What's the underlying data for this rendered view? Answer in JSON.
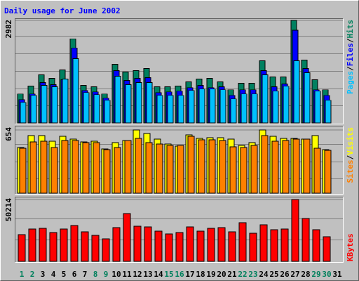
{
  "chart_data": {
    "type": "bar",
    "title": "Daily usage for June 2002",
    "categories": [
      "1",
      "2",
      "3",
      "4",
      "5",
      "6",
      "7",
      "8",
      "9",
      "10",
      "11",
      "12",
      "13",
      "14",
      "15",
      "16",
      "17",
      "18",
      "19",
      "20",
      "21",
      "22",
      "23",
      "24",
      "25",
      "26",
      "27",
      "28",
      "29",
      "30",
      "31"
    ],
    "category_colors": [
      "#00805C",
      "#00805C",
      "#000000",
      "#000000",
      "#000000",
      "#000000",
      "#000000",
      "#00805C",
      "#00805C",
      "#000000",
      "#000000",
      "#000000",
      "#000000",
      "#000000",
      "#00805C",
      "#00805C",
      "#000000",
      "#000000",
      "#000000",
      "#000000",
      "#000000",
      "#00805C",
      "#00805C",
      "#000000",
      "#000000",
      "#000000",
      "#000000",
      "#000000",
      "#00805C",
      "#00805C",
      "#000000"
    ],
    "label_separator": "/",
    "panels": [
      {
        "ylim": [
          0,
          2982
        ],
        "yticks": [
          2982
        ],
        "series": [
          {
            "name": "Hits",
            "color": "#008060",
            "label_color": "#00805C",
            "values": [
              843,
              1070,
              1399,
              1296,
              1543,
              2447,
              1090,
              1049,
              843,
              1707,
              1481,
              1522,
              1584,
              1049,
              1049,
              1070,
              1193,
              1275,
              1296,
              1193,
              967,
              1152,
              1152,
              1810,
              1337,
              1337,
              2982,
              1831,
              1255,
              967,
              null
            ]
          },
          {
            "name": "Files",
            "color": "#0000FF",
            "label_color": "#0000FF",
            "values": [
              679,
              843,
              1172,
              1111,
              1255,
              2180,
              946,
              905,
              720,
              1522,
              1234,
              1296,
              1316,
              884,
              905,
              925,
              1028,
              1090,
              1028,
              1049,
              802,
              967,
              967,
              1522,
              1049,
              1131,
              2694,
              1584,
              967,
              802,
              null
            ]
          },
          {
            "name": "Pages",
            "color": "#00C0FF",
            "label_color": "#00C0FF",
            "values": [
              596,
              802,
              1090,
              1049,
              1275,
              1871,
              884,
              823,
              658,
              1357,
              1111,
              1172,
              1172,
              802,
              802,
              802,
              946,
              987,
              987,
              967,
              699,
              843,
              843,
              1398,
              925,
              1069,
              1810,
              1460,
              925,
              658,
              null
            ]
          }
        ]
      },
      {
        "ylim": [
          0,
          654
        ],
        "yticks": [
          654
        ],
        "series": [
          {
            "name": "Visits",
            "color": "#FFFF00",
            "label_color": "#FFFF00",
            "values": [
              472,
              596,
              596,
              538,
              589,
              560,
              530,
              538,
              458,
              523,
              545,
              654,
              618,
              560,
              509,
              487,
              603,
              567,
              574,
              574,
              560,
              494,
              523,
              654,
              589,
              567,
              567,
              560,
              596,
              451,
              null
            ]
          },
          {
            "name": "Sites",
            "color": "#FF8000",
            "label_color": "#FF8000",
            "values": [
              465,
              530,
              538,
              472,
              545,
              545,
              523,
              523,
              451,
              472,
              545,
              567,
              523,
              509,
              494,
              494,
              589,
              552,
              552,
              545,
              480,
              472,
              494,
              596,
              538,
              545,
              560,
              560,
              465,
              443,
              null
            ]
          }
        ]
      },
      {
        "ylim": [
          0,
          50214
        ],
        "yticks": [
          50214
        ],
        "series": [
          {
            "name": "KBytes",
            "color": "#FF0000",
            "label_color": "#FF0000",
            "values": [
              21683,
              26248,
              26818,
              23395,
              26248,
              29101,
              23965,
              21112,
              18259,
              27389,
              38801,
              28530,
              27959,
              24536,
              22253,
              23395,
              27959,
              24536,
              26818,
              27389,
              23965,
              31383,
              22824,
              29672,
              25677,
              26248,
              50214,
              34807,
              25677,
              19971,
              null
            ]
          }
        ]
      }
    ]
  }
}
